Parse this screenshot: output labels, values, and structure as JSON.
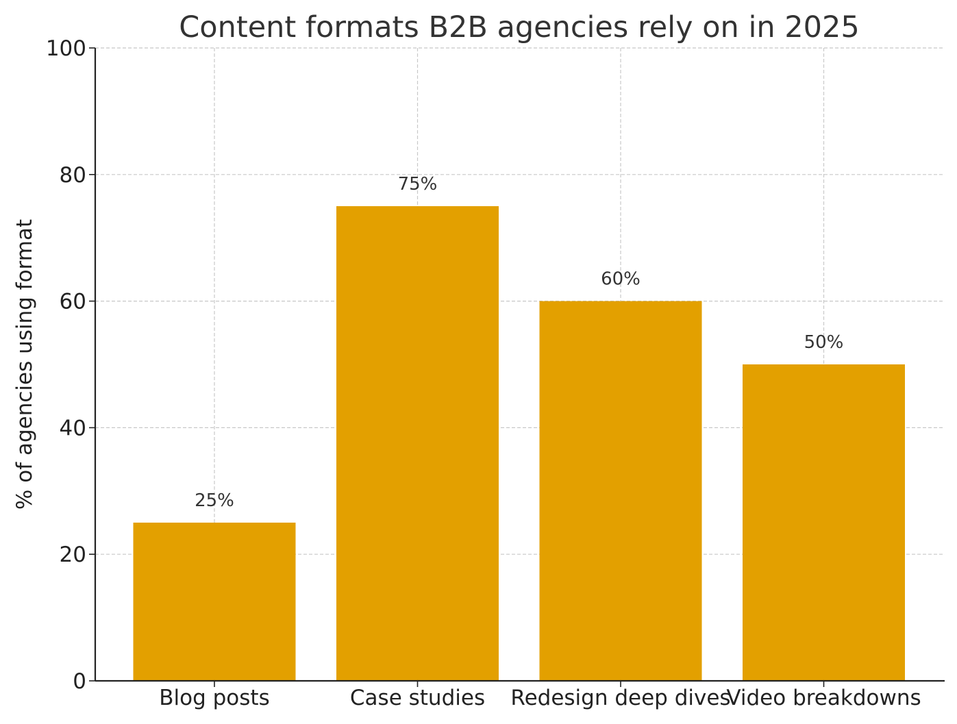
{
  "chart_data": {
    "type": "bar",
    "title": "Content formats B2B agencies rely on in 2025",
    "xlabel": "",
    "ylabel": "% of agencies using format",
    "categories": [
      "Blog posts",
      "Case studies",
      "Redesign deep dives",
      "Video breakdowns"
    ],
    "values": [
      25,
      75,
      60,
      50
    ],
    "data_labels": [
      "25%",
      "75%",
      "60%",
      "50%"
    ],
    "ylim": [
      0,
      100
    ],
    "yticks": [
      0,
      20,
      40,
      60,
      80,
      100
    ],
    "ytick_labels": [
      "0",
      "20",
      "40",
      "60",
      "80",
      "100"
    ],
    "grid": true,
    "bar_color": "#E3A000"
  }
}
